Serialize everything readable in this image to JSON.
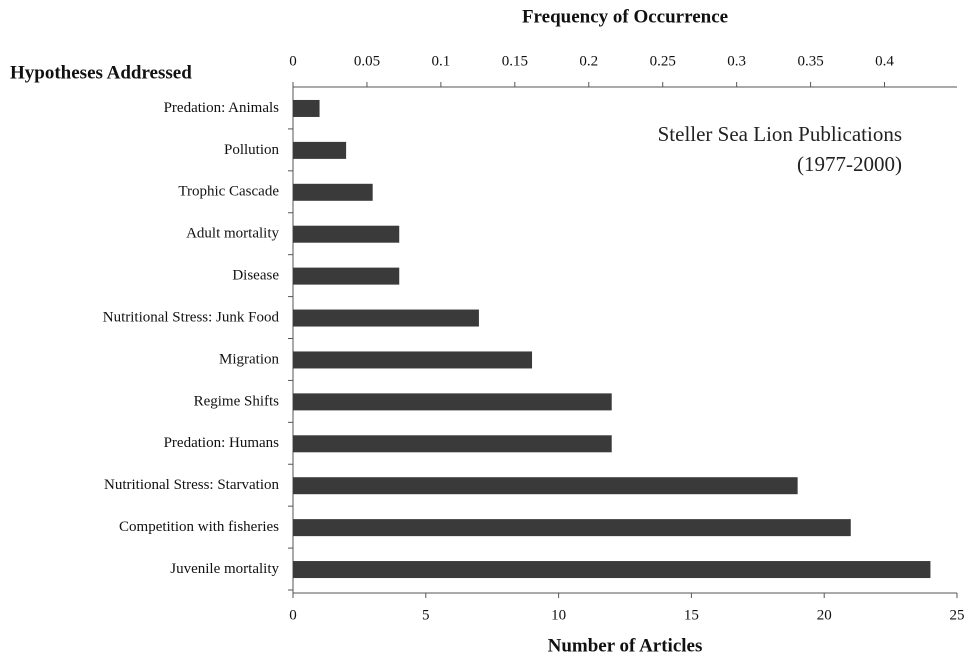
{
  "chart_data": {
    "type": "bar",
    "orientation": "horizontal",
    "title": "Frequency of Occurrence",
    "y_axis_label": "Hypotheses Addressed",
    "x_axis_label": "Number of Articles",
    "annotation": [
      "Steller Sea Lion Publications",
      "(1977-2000)"
    ],
    "categories": [
      "Predation: Animals",
      "Pollution",
      "Trophic Cascade",
      "Adult mortality",
      "Disease",
      "Nutritional Stress: Junk Food",
      "Migration",
      "Regime Shifts",
      "Predation: Humans",
      "Nutritional Stress: Starvation",
      "Competition with fisheries",
      "Juvenile mortality"
    ],
    "values": [
      1,
      2,
      3,
      4,
      4,
      7,
      9,
      12,
      12,
      19,
      21,
      24
    ],
    "color": "#3a3a3a",
    "xlim": [
      0,
      25
    ],
    "xticks": [
      0,
      5,
      10,
      15,
      20,
      25
    ],
    "x2lim": [
      0,
      0.449
    ],
    "x2ticks": [
      0,
      0.05,
      0.1,
      0.15,
      0.2,
      0.25,
      0.3,
      0.35,
      0.4
    ],
    "grid": false
  }
}
